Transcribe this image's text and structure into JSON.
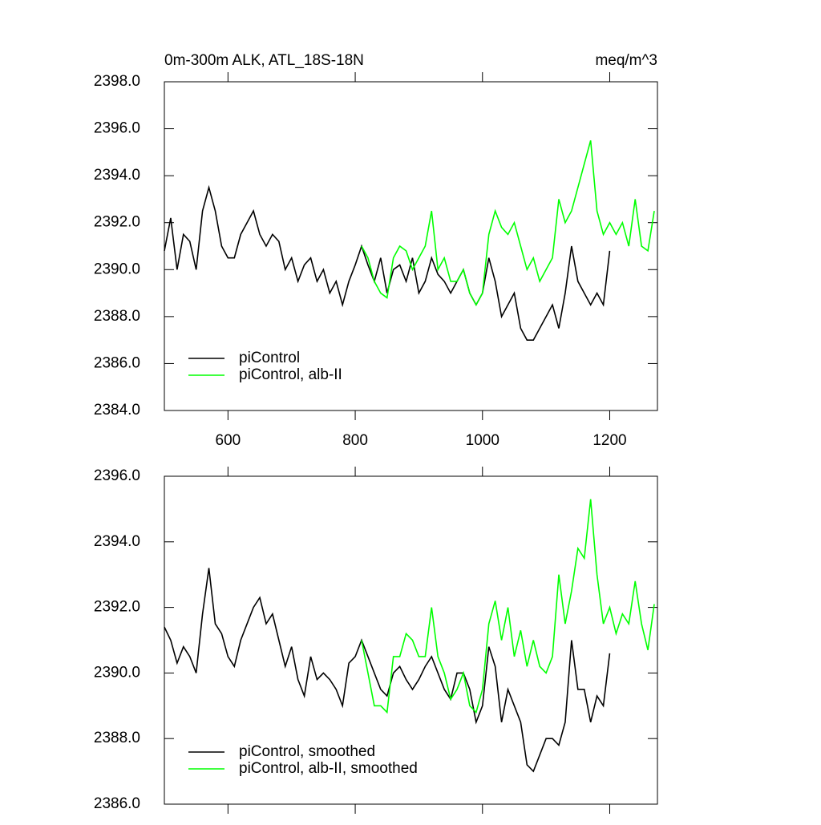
{
  "chart_data": [
    {
      "type": "line",
      "title": "0m-300m ALK, ATL_18S-18N",
      "units": "meq/m^3",
      "xlim": [
        500,
        1275
      ],
      "xticks": [
        600,
        800,
        1000,
        1200
      ],
      "show_xtick_labels": true,
      "ylim": [
        2384,
        2398
      ],
      "yticks": [
        {
          "value": 2384,
          "label": "2384.0"
        },
        {
          "value": 2386,
          "label": "2386.0"
        },
        {
          "value": 2388,
          "label": "2388.0"
        },
        {
          "value": 2390,
          "label": "2390.0"
        },
        {
          "value": 2392,
          "label": "2392.0"
        },
        {
          "value": 2394,
          "label": "2394.0"
        },
        {
          "value": 2396,
          "label": "2396.0"
        },
        {
          "value": 2398,
          "label": "2398.0"
        }
      ],
      "legend": "lower left",
      "series": [
        {
          "name": "piControl",
          "color": "#000000",
          "x": [
            500,
            510,
            520,
            530,
            540,
            550,
            560,
            570,
            580,
            590,
            600,
            610,
            620,
            630,
            640,
            650,
            660,
            670,
            680,
            690,
            700,
            710,
            720,
            730,
            740,
            750,
            760,
            770,
            780,
            790,
            800,
            810,
            820,
            830,
            840,
            850,
            860,
            870,
            880,
            890,
            900,
            910,
            920,
            930,
            940,
            950,
            960,
            970,
            980,
            990,
            1000,
            1010,
            1020,
            1030,
            1040,
            1050,
            1060,
            1070,
            1080,
            1090,
            1100,
            1110,
            1120,
            1130,
            1140,
            1150,
            1160,
            1170,
            1180,
            1190,
            1200
          ],
          "values": [
            2390.8,
            2392.2,
            2390.0,
            2391.5,
            2391.2,
            2390.0,
            2392.5,
            2393.5,
            2392.5,
            2391.0,
            2390.5,
            2390.5,
            2391.5,
            2392.0,
            2392.5,
            2391.5,
            2391.0,
            2391.5,
            2391.2,
            2390.0,
            2390.5,
            2389.5,
            2390.2,
            2390.5,
            2389.5,
            2390.0,
            2389.0,
            2389.5,
            2388.5,
            2389.5,
            2390.2,
            2391.0,
            2390.2,
            2389.5,
            2390.5,
            2389.0,
            2390.0,
            2390.2,
            2389.5,
            2390.5,
            2389.0,
            2389.5,
            2390.5,
            2389.8,
            2389.5,
            2389.0,
            2389.5,
            2390.0,
            2389.0,
            2388.5,
            2389.0,
            2390.5,
            2389.5,
            2388.0,
            2388.5,
            2389.0,
            2387.5,
            2387.0,
            2387.0,
            2387.5,
            2388.0,
            2388.5,
            2387.5,
            2389.0,
            2391.0,
            2389.5,
            2389.0,
            2388.5,
            2389.0,
            2388.5,
            2390.8
          ]
        },
        {
          "name": "piControl, alb-II",
          "color": "#00ff00",
          "x": [
            810,
            820,
            830,
            840,
            850,
            860,
            870,
            880,
            890,
            900,
            910,
            920,
            930,
            940,
            950,
            960,
            970,
            980,
            990,
            1000,
            1010,
            1020,
            1030,
            1040,
            1050,
            1060,
            1070,
            1080,
            1090,
            1100,
            1110,
            1120,
            1130,
            1140,
            1150,
            1160,
            1170,
            1180,
            1190,
            1200,
            1210,
            1220,
            1230,
            1240,
            1250,
            1260,
            1270
          ],
          "values": [
            2391.0,
            2390.5,
            2389.5,
            2389.0,
            2388.8,
            2390.5,
            2391.0,
            2390.8,
            2390.0,
            2390.5,
            2391.0,
            2392.5,
            2390.0,
            2390.5,
            2389.5,
            2389.5,
            2390.0,
            2389.0,
            2388.5,
            2389.0,
            2391.5,
            2392.5,
            2391.8,
            2391.5,
            2392.0,
            2391.0,
            2390.0,
            2390.5,
            2389.5,
            2390.0,
            2390.5,
            2393.0,
            2392.0,
            2392.5,
            2393.5,
            2394.5,
            2395.5,
            2392.5,
            2391.5,
            2392.0,
            2391.5,
            2392.0,
            2391.0,
            2393.0,
            2391.0,
            2390.8,
            2392.5
          ]
        }
      ]
    },
    {
      "type": "line",
      "xlim": [
        500,
        1275
      ],
      "xticks": [
        600,
        800,
        1000,
        1200
      ],
      "show_xtick_labels": false,
      "ylim": [
        2386,
        2396
      ],
      "yticks": [
        {
          "value": 2386,
          "label": "2386.0"
        },
        {
          "value": 2388,
          "label": "2388.0"
        },
        {
          "value": 2390,
          "label": "2390.0"
        },
        {
          "value": 2392,
          "label": "2392.0"
        },
        {
          "value": 2394,
          "label": "2394.0"
        },
        {
          "value": 2396,
          "label": "2396.0"
        }
      ],
      "legend": "lower left",
      "series": [
        {
          "name": "piControl, smoothed",
          "color": "#000000",
          "x": [
            500,
            510,
            520,
            530,
            540,
            550,
            560,
            570,
            580,
            590,
            600,
            610,
            620,
            630,
            640,
            650,
            660,
            670,
            680,
            690,
            700,
            710,
            720,
            730,
            740,
            750,
            760,
            770,
            780,
            790,
            800,
            810,
            820,
            830,
            840,
            850,
            860,
            870,
            880,
            890,
            900,
            910,
            920,
            930,
            940,
            950,
            960,
            970,
            980,
            990,
            1000,
            1010,
            1020,
            1030,
            1040,
            1050,
            1060,
            1070,
            1080,
            1090,
            1100,
            1110,
            1120,
            1130,
            1140,
            1150,
            1160,
            1170,
            1180,
            1190,
            1200
          ],
          "values": [
            2391.4,
            2391.0,
            2390.3,
            2390.8,
            2390.5,
            2390.0,
            2391.8,
            2393.2,
            2391.5,
            2391.2,
            2390.5,
            2390.2,
            2391.0,
            2391.5,
            2392.0,
            2392.3,
            2391.5,
            2391.8,
            2391.0,
            2390.2,
            2390.8,
            2389.8,
            2389.3,
            2390.5,
            2389.8,
            2390.0,
            2389.8,
            2389.5,
            2389.0,
            2390.3,
            2390.5,
            2391.0,
            2390.5,
            2390.0,
            2389.5,
            2389.3,
            2390.0,
            2390.2,
            2389.8,
            2389.5,
            2389.8,
            2390.2,
            2390.5,
            2390.0,
            2389.5,
            2389.2,
            2390.0,
            2390.0,
            2389.5,
            2388.5,
            2389.0,
            2390.8,
            2390.2,
            2388.5,
            2389.5,
            2389.0,
            2388.5,
            2387.2,
            2387.0,
            2387.5,
            2388.0,
            2388.0,
            2387.8,
            2388.5,
            2391.0,
            2389.5,
            2389.5,
            2388.5,
            2389.3,
            2389.0,
            2390.6
          ]
        },
        {
          "name": "piControl, alb-II, smoothed",
          "color": "#00ff00",
          "x": [
            810,
            820,
            830,
            840,
            850,
            860,
            870,
            880,
            890,
            900,
            910,
            920,
            930,
            940,
            950,
            960,
            970,
            980,
            990,
            1000,
            1010,
            1020,
            1030,
            1040,
            1050,
            1060,
            1070,
            1080,
            1090,
            1100,
            1110,
            1120,
            1130,
            1140,
            1150,
            1160,
            1170,
            1180,
            1190,
            1200,
            1210,
            1220,
            1230,
            1240,
            1250,
            1260,
            1270
          ],
          "values": [
            2391.0,
            2390.0,
            2389.0,
            2389.0,
            2388.8,
            2390.5,
            2390.5,
            2391.2,
            2391.0,
            2390.5,
            2390.5,
            2392.0,
            2390.5,
            2390.0,
            2389.2,
            2389.5,
            2390.0,
            2389.0,
            2388.8,
            2389.5,
            2391.5,
            2392.2,
            2391.0,
            2392.0,
            2390.5,
            2391.3,
            2390.2,
            2391.0,
            2390.2,
            2390.0,
            2390.5,
            2393.0,
            2391.5,
            2392.5,
            2393.8,
            2393.5,
            2395.3,
            2393.0,
            2391.5,
            2392.0,
            2391.2,
            2391.8,
            2391.5,
            2392.8,
            2391.5,
            2390.7,
            2392.1
          ]
        }
      ]
    }
  ]
}
